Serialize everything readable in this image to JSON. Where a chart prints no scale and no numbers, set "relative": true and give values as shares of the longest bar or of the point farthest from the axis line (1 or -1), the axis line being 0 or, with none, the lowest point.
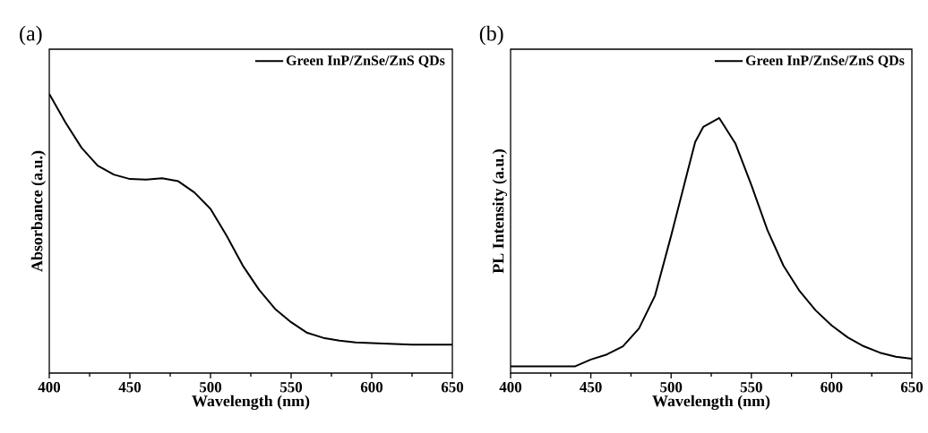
{
  "chart_data": [
    {
      "type": "line",
      "title": "(a)",
      "xlabel": "Wavelength (nm)",
      "ylabel": "Absorbance (a.u.)",
      "relative": true,
      "legend": "top right",
      "xlim": [
        400,
        650
      ],
      "xticks": [
        400,
        450,
        500,
        550,
        600,
        650
      ],
      "series": [
        {
          "name": "Green InP/ZnSe/ZnS QDs",
          "color": "#000000",
          "x": [
            400,
            410,
            420,
            430,
            440,
            450,
            460,
            470,
            480,
            490,
            500,
            510,
            520,
            530,
            540,
            550,
            560,
            570,
            580,
            590,
            600,
            625,
            650
          ],
          "values": [
            1.0,
            0.898,
            0.807,
            0.743,
            0.711,
            0.695,
            0.693,
            0.698,
            0.687,
            0.647,
            0.588,
            0.492,
            0.385,
            0.299,
            0.23,
            0.182,
            0.144,
            0.126,
            0.116,
            0.11,
            0.107,
            0.102,
            0.102
          ]
        }
      ]
    },
    {
      "type": "line",
      "title": "(b)",
      "xlabel": "Wavelength (nm)",
      "ylabel": "PL Intensity (a.u.)",
      "relative": true,
      "legend": "top right",
      "xlim": [
        400,
        650
      ],
      "xticks": [
        400,
        450,
        500,
        550,
        600,
        650
      ],
      "series": [
        {
          "name": "Green InP/ZnSe/ZnS QDs",
          "color": "#000000",
          "x": [
            400,
            440,
            450,
            460,
            470,
            480,
            490,
            500,
            510,
            515,
            520,
            530,
            540,
            550,
            560,
            570,
            580,
            590,
            600,
            610,
            620,
            630,
            640,
            650
          ],
          "values": [
            0.026,
            0.026,
            0.053,
            0.073,
            0.105,
            0.175,
            0.304,
            0.538,
            0.784,
            0.906,
            0.965,
            1.0,
            0.901,
            0.737,
            0.561,
            0.421,
            0.322,
            0.246,
            0.187,
            0.14,
            0.105,
            0.08,
            0.064,
            0.056
          ]
        }
      ]
    }
  ]
}
